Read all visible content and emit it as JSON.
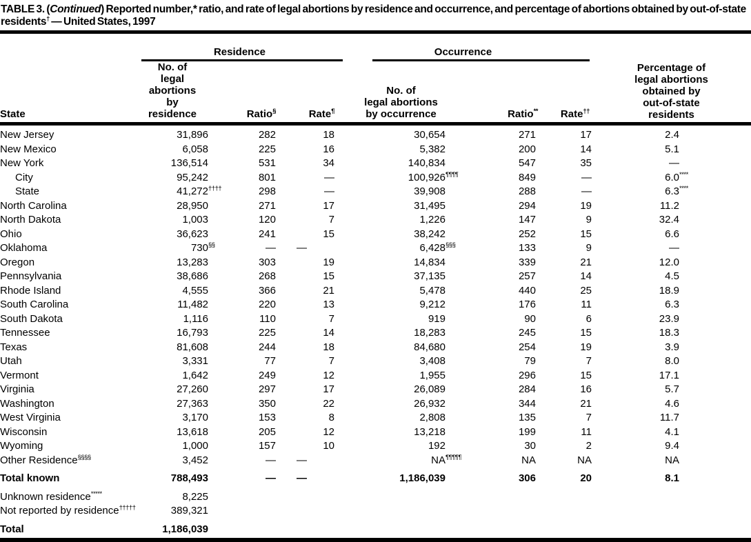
{
  "title": {
    "lead": "TABLE 3. (",
    "continued": "Continued",
    "rest": ") Reported number,* ratio, and rate of legal abortions by residence and occurrence, and percentage of abortions obtained by out-of-state residents",
    "marker": "†",
    "tail": " — United States, 1997"
  },
  "table": {
    "col_groups": {
      "residence": "Residence",
      "occurrence": "Occurrence"
    },
    "headers": {
      "state": "State",
      "res_no_lines": [
        "No. of",
        "legal abortions",
        "by residence"
      ],
      "res_ratio": "Ratio^§",
      "res_rate": "Rate^¶",
      "occ_no_lines": [
        "No. of",
        "legal abortions",
        "by occurrence"
      ],
      "occ_ratio": "Ratio^**",
      "occ_rate": "Rate^††",
      "pct_lines": [
        "Percentage of",
        "legal abortions",
        "obtained by",
        "out-of-state",
        "residents"
      ]
    },
    "rows": [
      {
        "state": "New Jersey",
        "cells": [
          "31,896",
          "282",
          "18",
          "30,654",
          "271",
          "17",
          "2.4"
        ]
      },
      {
        "state": "New Mexico",
        "cells": [
          "6,058",
          "225",
          "16",
          "5,382",
          "200",
          "14",
          "5.1"
        ]
      },
      {
        "state": "New York",
        "cells": [
          "136,514",
          "531",
          "34",
          "140,834",
          "547",
          "35",
          "—"
        ]
      },
      {
        "state": "City",
        "indent": true,
        "cells": [
          "95,242",
          "801",
          "—",
          "100,926^¶¶¶¶",
          "849",
          "—",
          "6.0^****"
        ]
      },
      {
        "state": "State",
        "indent": true,
        "cells": [
          "41,272^††††",
          "298",
          "—",
          "39,908",
          "288",
          "—",
          "6.3^****"
        ]
      },
      {
        "state": "North Carolina",
        "cells": [
          "28,950",
          "271",
          "17",
          "31,495",
          "294",
          "19",
          "11.2"
        ]
      },
      {
        "state": "North Dakota",
        "cells": [
          "1,003",
          "120",
          "7",
          "1,226",
          "147",
          "9",
          "32.4"
        ]
      },
      {
        "state": "Ohio",
        "cells": [
          "36,623",
          "241",
          "15",
          "38,242",
          "252",
          "15",
          "6.6"
        ]
      },
      {
        "state": "Oklahoma",
        "dashShift": true,
        "cells": [
          "730^§§",
          "—",
          "—",
          "6,428^§§§",
          "133",
          "9",
          "—"
        ]
      },
      {
        "state": "Oregon",
        "cells": [
          "13,283",
          "303",
          "19",
          "14,834",
          "339",
          "21",
          "12.0"
        ]
      },
      {
        "state": "Pennsylvania",
        "cells": [
          "38,686",
          "268",
          "15",
          "37,135",
          "257",
          "14",
          "4.5"
        ]
      },
      {
        "state": "Rhode Island",
        "cells": [
          "4,555",
          "366",
          "21",
          "5,478",
          "440",
          "25",
          "18.9"
        ]
      },
      {
        "state": "South Carolina",
        "cells": [
          "11,482",
          "220",
          "13",
          "9,212",
          "176",
          "11",
          "6.3"
        ]
      },
      {
        "state": "South Dakota",
        "cells": [
          "1,116",
          "110",
          "7",
          "919",
          "90",
          "6",
          "23.9"
        ]
      },
      {
        "state": "Tennessee",
        "cells": [
          "16,793",
          "225",
          "14",
          "18,283",
          "245",
          "15",
          "18.3"
        ]
      },
      {
        "state": "Texas",
        "cells": [
          "81,608",
          "244",
          "18",
          "84,680",
          "254",
          "19",
          "3.9"
        ]
      },
      {
        "state": "Utah",
        "cells": [
          "3,331",
          "77",
          "7",
          "3,408",
          "79",
          "7",
          "8.0"
        ]
      },
      {
        "state": "Vermont",
        "cells": [
          "1,642",
          "249",
          "12",
          "1,955",
          "296",
          "15",
          "17.1"
        ]
      },
      {
        "state": "Virginia",
        "cells": [
          "27,260",
          "297",
          "17",
          "26,089",
          "284",
          "16",
          "5.7"
        ]
      },
      {
        "state": "Washington",
        "cells": [
          "27,363",
          "350",
          "22",
          "26,932",
          "344",
          "21",
          "4.6"
        ]
      },
      {
        "state": "West Virginia",
        "cells": [
          "3,170",
          "153",
          "8",
          "2,808",
          "135",
          "7",
          "11.7"
        ]
      },
      {
        "state": "Wisconsin",
        "cells": [
          "13,618",
          "205",
          "12",
          "13,218",
          "199",
          "11",
          "4.1"
        ]
      },
      {
        "state": "Wyoming",
        "cells": [
          "1,000",
          "157",
          "10",
          "192",
          "30",
          "2",
          "9.4"
        ]
      },
      {
        "state": "Other Residence^§§§§",
        "dashShift": true,
        "cells": [
          "3,452",
          "—",
          "—",
          "NA^¶¶¶¶¶",
          "NA",
          "NA",
          "NA"
        ]
      },
      {
        "state": "Total known",
        "bold": true,
        "gap": true,
        "dashShift": true,
        "cells": [
          "788,493",
          "—",
          "—",
          "1,186,039",
          "306",
          "20",
          "8.1"
        ]
      },
      {
        "state": "Unknown residence^*****",
        "gap": true,
        "cells": [
          "8,225",
          "",
          "",
          "",
          "",
          "",
          ""
        ]
      },
      {
        "state": "Not reported by residence^†††††",
        "cells": [
          "389,321",
          "",
          "",
          "",
          "",
          "",
          ""
        ]
      },
      {
        "state": "Total",
        "bold": true,
        "gap": true,
        "cells": [
          "1,186,039",
          "",
          "",
          "",
          "",
          "",
          ""
        ]
      }
    ]
  }
}
